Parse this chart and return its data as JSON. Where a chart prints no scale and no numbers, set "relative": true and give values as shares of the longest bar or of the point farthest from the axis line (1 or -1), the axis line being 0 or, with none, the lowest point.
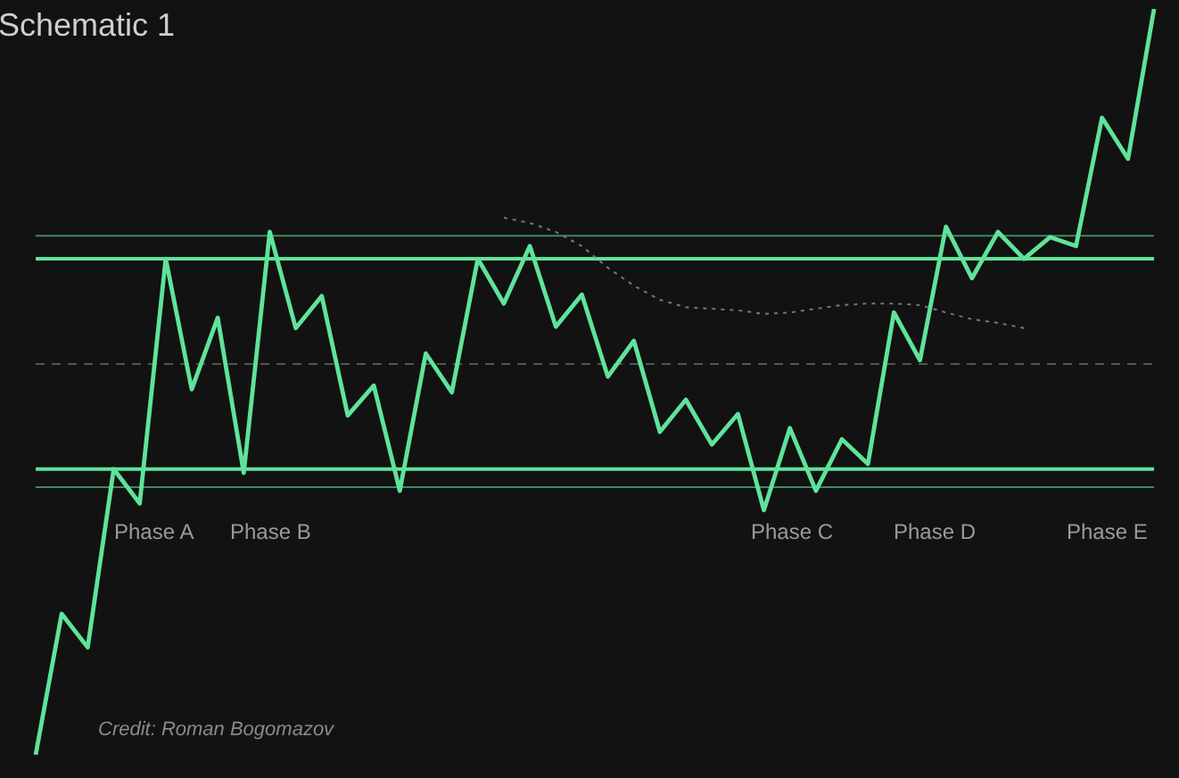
{
  "chart_data": {
    "type": "line",
    "title": "Schematic 1",
    "relative": true,
    "grid": false,
    "marker": "none",
    "categories": [
      null,
      null,
      null,
      null,
      null,
      null,
      null,
      null,
      null,
      null,
      null,
      null,
      null,
      null,
      null,
      null,
      null,
      null,
      null,
      null,
      null,
      null,
      null,
      null,
      null,
      null,
      null,
      null,
      null,
      null,
      null,
      null,
      null,
      null,
      null,
      null,
      null,
      null,
      null,
      null,
      null,
      null,
      null,
      null
    ],
    "series": [
      {
        "color": "#5fe39a",
        "line_style": "solid",
        "values": [
          0,
          0.189,
          0.144,
          0.383,
          0.337,
          0.665,
          0.49,
          0.586,
          0.378,
          0.701,
          0.572,
          0.615,
          0.455,
          0.495,
          0.354,
          0.538,
          0.486,
          0.665,
          0.605,
          0.682,
          0.574,
          0.617,
          0.507,
          0.555,
          0.433,
          0.476,
          0.416,
          0.457,
          0.328,
          0.438,
          0.354,
          0.423,
          0.39,
          0.593,
          0.529,
          0.708,
          0.639,
          0.701,
          0.665,
          0.694,
          0.682,
          0.854,
          0.799,
          1
        ]
      },
      {
        "color": "#777777",
        "line_style": "dotted",
        "values": [
          null,
          null,
          null,
          null,
          null,
          null,
          null,
          null,
          null,
          null,
          null,
          null,
          null,
          null,
          null,
          null,
          null,
          null,
          0.72,
          0.713,
          0.701,
          0.682,
          0.653,
          0.629,
          0.61,
          0.6,
          0.598,
          0.596,
          0.591,
          0.593,
          0.598,
          0.603,
          0.605,
          0.605,
          0.603,
          0.593,
          0.584,
          0.579,
          0.572,
          null,
          null,
          null,
          null,
          null
        ]
      }
    ],
    "ref_lines": [
      {
        "axis": "y",
        "value": 0.696,
        "color": "#3f8a5e",
        "line_style": "solid"
      },
      {
        "axis": "y",
        "value": 0.665,
        "color": "#5fe39a",
        "line_style": "solid"
      },
      {
        "axis": "y",
        "value": 0.524,
        "color": "#555555",
        "line_style": "dashed"
      },
      {
        "axis": "y",
        "value": 0.383,
        "color": "#5fe39a",
        "line_style": "solid"
      },
      {
        "axis": "y",
        "value": 0.359,
        "color": "#3f8a5e",
        "line_style": "solid"
      }
    ],
    "annotations": [
      "Phase A",
      "Phase B",
      "Phase C",
      "Phase D",
      "Phase E",
      "Credit: Roman Bogomazov"
    ]
  }
}
